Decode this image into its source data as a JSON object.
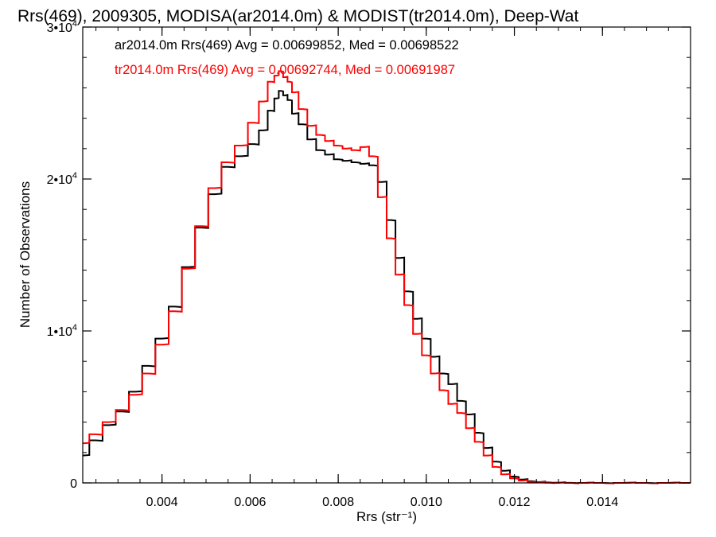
{
  "chart_data": {
    "type": "line",
    "title": "Rrs(469), 2009305, MODISA(ar2014.0m) & MODIST(tr2014.0m), Deep-Wat",
    "xlabel": "Rrs (str⁻¹)",
    "ylabel": "Number of Observations",
    "xlim": [
      0.0022,
      0.016
    ],
    "ylim": [
      0,
      30000
    ],
    "xticks": [
      {
        "value": 0.004,
        "label": "0.004"
      },
      {
        "value": 0.006,
        "label": "0.006"
      },
      {
        "value": 0.008,
        "label": "0.008"
      },
      {
        "value": 0.01,
        "label": "0.010"
      },
      {
        "value": 0.012,
        "label": "0.012"
      },
      {
        "value": 0.014,
        "label": "0.014"
      }
    ],
    "yticks": [
      {
        "value": 0,
        "base": "0",
        "exp": ""
      },
      {
        "value": 10000,
        "base": "1•10",
        "exp": "4"
      },
      {
        "value": 20000,
        "base": "2•10",
        "exp": "4"
      },
      {
        "value": 30000,
        "base": "3•10",
        "exp": "4"
      }
    ],
    "x_minor_step": 0.0005,
    "y_minor_step": 2000,
    "grid": false,
    "series": [
      {
        "name": "ar2014.0m",
        "color": "#000000",
        "x": [
          0.0022,
          0.0025,
          0.0028,
          0.0031,
          0.0034,
          0.0037,
          0.004,
          0.0043,
          0.0046,
          0.0049,
          0.0052,
          0.0055,
          0.0058,
          0.0061,
          0.0063,
          0.0065,
          0.0066,
          0.0067,
          0.0068,
          0.0069,
          0.007,
          0.0072,
          0.0074,
          0.0076,
          0.0078,
          0.008,
          0.0082,
          0.0084,
          0.0086,
          0.0088,
          0.009,
          0.0092,
          0.0094,
          0.0096,
          0.0098,
          0.01,
          0.0102,
          0.0104,
          0.0106,
          0.0108,
          0.011,
          0.0112,
          0.0114,
          0.0116,
          0.0118,
          0.012,
          0.0122,
          0.0124,
          0.0126,
          0.0128,
          0.013,
          0.0133,
          0.0136,
          0.014,
          0.0145,
          0.015,
          0.0155,
          0.016
        ],
        "values": [
          1800,
          2800,
          3800,
          4700,
          6000,
          7700,
          9500,
          11600,
          14200,
          16800,
          19000,
          20800,
          21500,
          22300,
          23200,
          24500,
          25300,
          25800,
          25500,
          25200,
          24300,
          23600,
          22600,
          21900,
          21600,
          21300,
          21200,
          21100,
          21000,
          20900,
          19800,
          17300,
          14800,
          12600,
          10800,
          9500,
          8300,
          7200,
          6500,
          5400,
          4500,
          3300,
          2300,
          1400,
          800,
          420,
          220,
          110,
          60,
          30,
          15,
          5,
          0,
          0,
          0,
          0,
          0,
          0
        ]
      },
      {
        "name": "tr2014.0m",
        "color": "#ff0000",
        "x": [
          0.0022,
          0.0025,
          0.0028,
          0.0031,
          0.0034,
          0.0037,
          0.004,
          0.0043,
          0.0046,
          0.0049,
          0.0052,
          0.0055,
          0.0058,
          0.0061,
          0.0063,
          0.0065,
          0.0066,
          0.0067,
          0.0068,
          0.0069,
          0.007,
          0.0072,
          0.0074,
          0.0076,
          0.0078,
          0.008,
          0.0082,
          0.0084,
          0.0086,
          0.0088,
          0.009,
          0.0092,
          0.0094,
          0.0096,
          0.0098,
          0.01,
          0.0102,
          0.0104,
          0.0106,
          0.0108,
          0.011,
          0.0112,
          0.0114,
          0.0116,
          0.0118,
          0.012,
          0.0122,
          0.0124,
          0.0126,
          0.0128,
          0.013,
          0.0133,
          0.0136,
          0.014,
          0.0145,
          0.015,
          0.0155,
          0.016
        ],
        "values": [
          2600,
          3200,
          4000,
          4800,
          5800,
          7200,
          9100,
          11300,
          14100,
          16900,
          19400,
          21100,
          22200,
          23700,
          25100,
          26400,
          26800,
          27100,
          26700,
          26400,
          25700,
          24600,
          23500,
          22900,
          22500,
          22200,
          22000,
          21900,
          22100,
          21500,
          18800,
          16100,
          13700,
          11700,
          9800,
          8400,
          7200,
          6100,
          5200,
          4600,
          3600,
          2700,
          1800,
          1050,
          560,
          300,
          150,
          70,
          35,
          15,
          5,
          0,
          0,
          0,
          0,
          0,
          0,
          0
        ]
      }
    ],
    "annotations": [
      {
        "text": "ar2014.0m Rrs(469) Avg = 0.00699852, Med = 0.00698522",
        "color": "#000000"
      },
      {
        "text": "tr2014.0m Rrs(469) Avg = 0.00692744, Med = 0.00691987",
        "color": "#ff0000"
      }
    ]
  }
}
